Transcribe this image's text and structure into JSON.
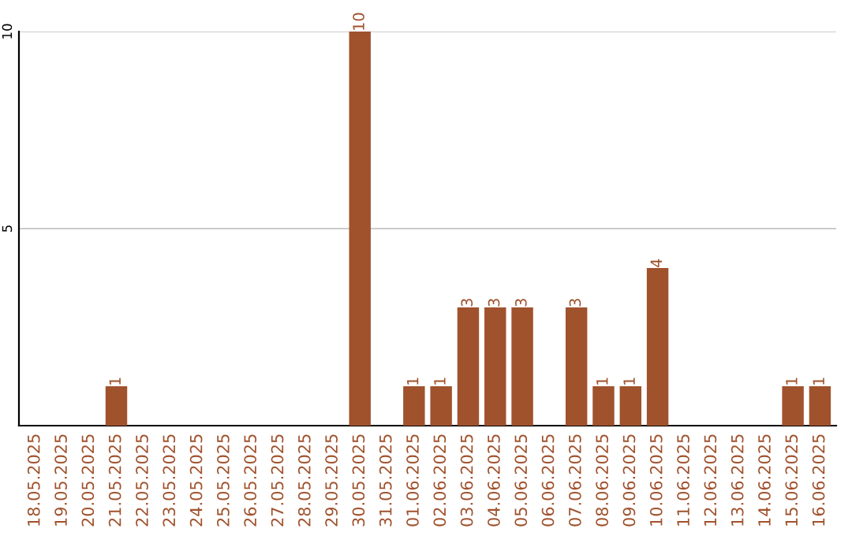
{
  "chart_data": {
    "type": "bar",
    "categories": [
      "18.05.2025",
      "19.05.2025",
      "20.05.2025",
      "21.05.2025",
      "22.05.2025",
      "23.05.2025",
      "24.05.2025",
      "25.05.2025",
      "26.05.2025",
      "27.05.2025",
      "28.05.2025",
      "29.05.2025",
      "30.05.2025",
      "31.05.2025",
      "01.06.2025",
      "02.06.2025",
      "03.06.2025",
      "04.06.2025",
      "05.06.2025",
      "06.06.2025",
      "07.06.2025",
      "08.06.2025",
      "09.06.2025",
      "10.06.2025",
      "11.06.2025",
      "12.06.2025",
      "13.06.2025",
      "14.06.2025",
      "15.06.2025",
      "16.06.2025"
    ],
    "values": [
      0,
      0,
      0,
      1,
      0,
      0,
      0,
      0,
      0,
      0,
      0,
      0,
      10,
      0,
      1,
      1,
      3,
      3,
      3,
      0,
      3,
      1,
      1,
      4,
      0,
      0,
      0,
      0,
      1,
      1
    ],
    "value_labels": [
      null,
      null,
      null,
      "1",
      null,
      null,
      null,
      null,
      null,
      null,
      null,
      null,
      "10",
      null,
      "1",
      "1",
      "3",
      "3",
      "3",
      null,
      "3",
      "1",
      "1",
      "4",
      null,
      null,
      null,
      null,
      "1",
      "1"
    ],
    "color": "#a0522d",
    "ylim": [
      0,
      10
    ],
    "yticks": [
      5,
      10
    ],
    "grid": "y"
  }
}
